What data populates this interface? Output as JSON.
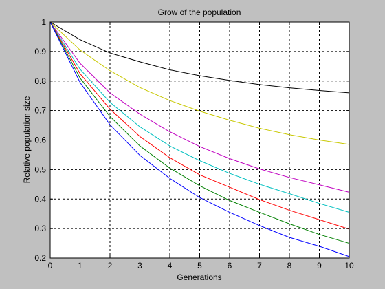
{
  "chart_data": {
    "type": "line",
    "title": "Grow of the population",
    "xlabel": "Generations",
    "ylabel": "Relative population size",
    "xlim": [
      0,
      10
    ],
    "ylim": [
      0.2,
      1
    ],
    "xticks": [
      0,
      1,
      2,
      3,
      4,
      5,
      6,
      7,
      8,
      9,
      10
    ],
    "yticks": [
      0.2,
      0.3,
      0.4,
      0.5,
      0.6,
      0.7,
      0.8,
      0.9,
      1
    ],
    "grid": true,
    "x": [
      0,
      1,
      2,
      3,
      4,
      5,
      6,
      7,
      8,
      9,
      10
    ],
    "series": [
      {
        "color": "#000000",
        "values": [
          1,
          0.94,
          0.895,
          0.865,
          0.838,
          0.818,
          0.802,
          0.788,
          0.777,
          0.768,
          0.76
        ]
      },
      {
        "color": "#c8c800",
        "values": [
          1,
          0.905,
          0.835,
          0.778,
          0.734,
          0.698,
          0.667,
          0.64,
          0.618,
          0.6,
          0.585
        ]
      },
      {
        "color": "#c000c0",
        "values": [
          1,
          0.86,
          0.76,
          0.688,
          0.628,
          0.578,
          0.537,
          0.502,
          0.473,
          0.448,
          0.423
        ]
      },
      {
        "color": "#00c0c0",
        "values": [
          1,
          0.84,
          0.728,
          0.645,
          0.58,
          0.53,
          0.487,
          0.45,
          0.418,
          0.385,
          0.355
        ]
      },
      {
        "color": "#ff0000",
        "values": [
          1,
          0.825,
          0.705,
          0.612,
          0.54,
          0.482,
          0.44,
          0.398,
          0.362,
          0.33,
          0.298
        ]
      },
      {
        "color": "#008000",
        "values": [
          1,
          0.81,
          0.68,
          0.58,
          0.505,
          0.445,
          0.395,
          0.355,
          0.316,
          0.28,
          0.25
        ]
      },
      {
        "color": "#0000ff",
        "values": [
          1,
          0.795,
          0.652,
          0.548,
          0.47,
          0.405,
          0.355,
          0.31,
          0.27,
          0.24,
          0.205
        ]
      }
    ]
  }
}
